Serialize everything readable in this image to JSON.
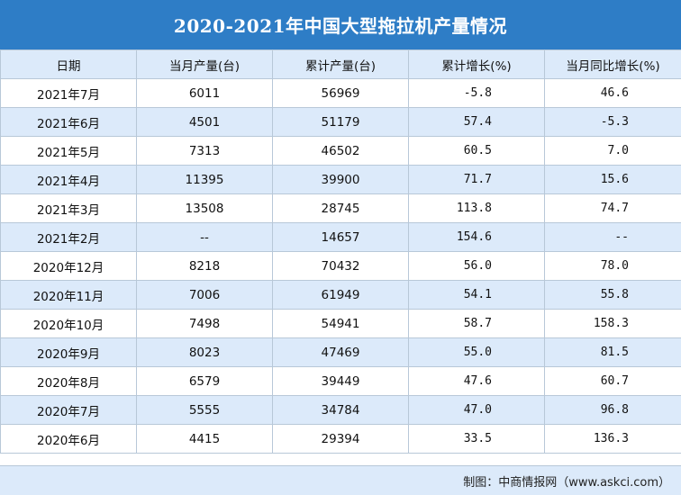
{
  "title": "2020-2021年中国大型拖拉机产量情况",
  "chart_data": {
    "type": "table",
    "title": "2020-2021年中国大型拖拉机产量情况",
    "columns": [
      "日期",
      "当月产量(台)",
      "累计产量(台)",
      "累计增长(%)",
      "当月同比增长(%)"
    ],
    "rows": [
      [
        "2021年7月",
        "6011",
        "56969",
        "-5.8",
        "46.6"
      ],
      [
        "2021年6月",
        "4501",
        "51179",
        "57.4",
        "-5.3"
      ],
      [
        "2021年5月",
        "7313",
        "46502",
        "60.5",
        "7.0"
      ],
      [
        "2021年4月",
        "11395",
        "39900",
        "71.7",
        "15.6"
      ],
      [
        "2021年3月",
        "13508",
        "28745",
        "113.8",
        "74.7"
      ],
      [
        "2021年2月",
        "--",
        "14657",
        "154.6",
        "--"
      ],
      [
        "2020年12月",
        "8218",
        "70432",
        "56.0",
        "78.0"
      ],
      [
        "2020年11月",
        "7006",
        "61949",
        "54.1",
        "55.8"
      ],
      [
        "2020年10月",
        "7498",
        "54941",
        "58.7",
        "158.3"
      ],
      [
        "2020年9月",
        "8023",
        "47469",
        "55.0",
        "81.5"
      ],
      [
        "2020年8月",
        "6579",
        "39449",
        "47.6",
        "60.7"
      ],
      [
        "2020年7月",
        "5555",
        "34784",
        "47.0",
        "96.8"
      ],
      [
        "2020年6月",
        "4415",
        "29394",
        "33.5",
        "136.3"
      ]
    ]
  },
  "footer": "制图：中商情报网（www.askci.com）",
  "colors": {
    "title_bg": "#2e7dc6",
    "stripe": "#dceafa",
    "border": "#b8c8d8"
  }
}
